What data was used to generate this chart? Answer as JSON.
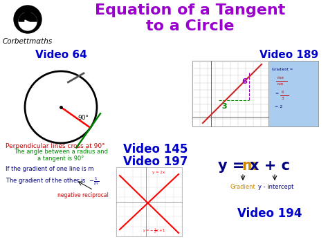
{
  "bg_color": "#ffffff",
  "title_line1": "Equation of a Tangent",
  "title_line2": "to a Circle",
  "title_color": "#9900cc",
  "corbett_text": "Corbettmαths",
  "corbett_color": "#000000",
  "video64_label": "Video 64",
  "video64_color": "#0000cc",
  "video145_label": "Video 145",
  "video145_color": "#0000cc",
  "video197_label": "Video 197",
  "video197_color": "#0000cc",
  "video189_label": "Video 189",
  "video189_color": "#0000cc",
  "video194_label": "Video 194",
  "video194_color": "#0000cc",
  "angle_text": "90°",
  "radius_tangent_text1": "The angle between a radius and",
  "radius_tangent_text2": "a tangent is 90°",
  "radius_tangent_color": "#008800",
  "perp_text": "Perpendicular lines cross at 90°",
  "perp_color": "#cc0000",
  "gradient_text1": "If the gradient of one line is m",
  "gradient_text2": "The gradient of the other is",
  "gradient_color": "#000080",
  "neg_recip_label": "negative reciprocal",
  "neg_recip_color": "#cc0000",
  "ymx_color_main": "#000080",
  "ymx_color_m": "#cc8800",
  "gradient_label": "Gradient",
  "gradient_label_color": "#cc8800",
  "yintercept_label": "y - intercept",
  "yintercept_label_color": "#000080",
  "graph_grid_color": "#cccccc",
  "graph_line_color": "#cc2222",
  "graph_formula_bg": "#aaccee",
  "graph_formula_color": "#cc0000",
  "graph_label6_color": "#9900bb",
  "graph_label3_color": "#008800"
}
